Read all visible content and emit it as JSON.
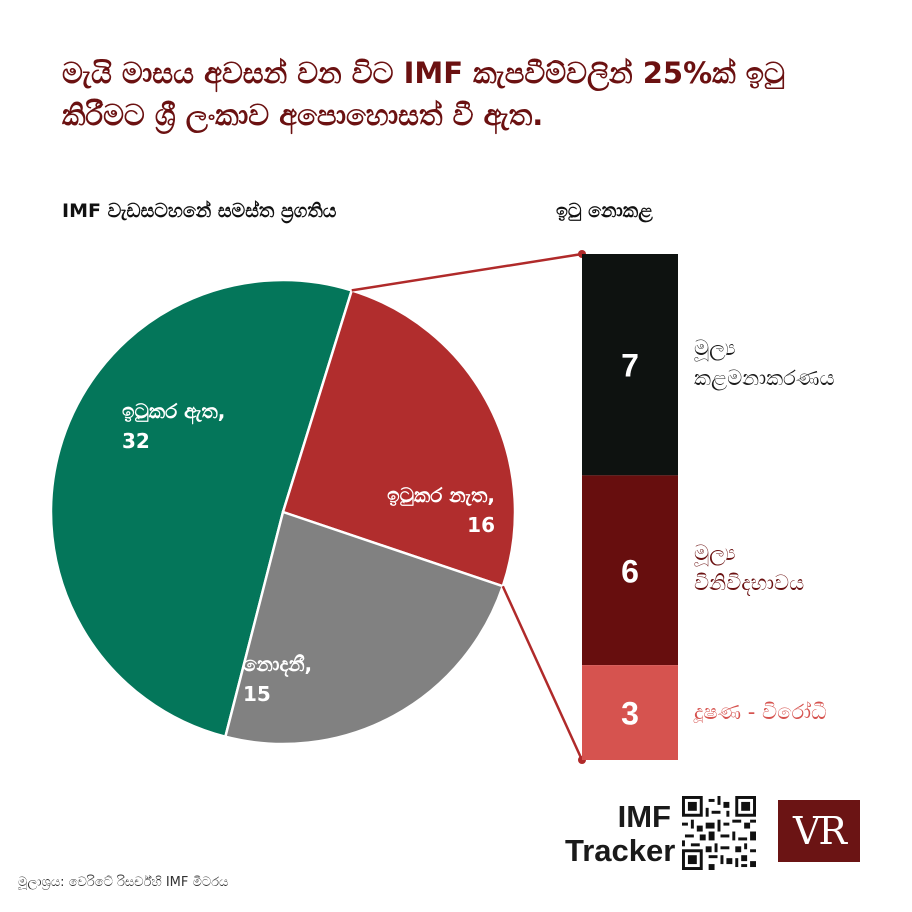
{
  "title": "මැයි මාසය අවසන් වන විට IMF කැපවීම්වලින් 25%ක් ඉටු කිරීමට ශ්‍රී ලංකාව අපොහොසත් වී ඇත.",
  "left_heading": "IMF වැඩසටහනේ සමස්ත ප්‍රගතිය",
  "right_heading": "ඉටු නොකළ",
  "source": "මූලාශ්‍රය: වෙරිටේ රිසර්ච්හි IMF මීටරය",
  "brand": {
    "line1": "IMF",
    "line2": "Tracker",
    "logo_text": "VR"
  },
  "colors": {
    "green": "#04765a",
    "red": "#b12d2d",
    "gray": "#818181",
    "bar_black": "#0e1210",
    "bar_maroon": "#670e0e",
    "bar_pink": "#d6534f",
    "connector": "#b02a2a",
    "title": "#6b1111"
  },
  "chart_data": [
    {
      "type": "pie",
      "slices": [
        {
          "label": "ඉටුකර ඇත,",
          "value": 32,
          "color": "#04765a"
        },
        {
          "label": "ඉටුකර නැත,",
          "value": 16,
          "color": "#b12d2d"
        },
        {
          "label": "නොදනී,",
          "value": 15,
          "color": "#818181"
        }
      ]
    },
    {
      "type": "bar",
      "stacked": true,
      "categories": [
        {
          "label_line1": "මූල්‍ය",
          "label_line2": "කළමනාකරණය",
          "value": 7,
          "color": "#0e1210",
          "text_color": "#1a1a1a"
        },
        {
          "label_line1": "මූල්‍ය",
          "label_line2": "විනිවිදභාවය",
          "value": 6,
          "color": "#670e0e",
          "text_color": "#6b1111"
        },
        {
          "label_line1": "දූෂණ - විරෝධී",
          "label_line2": "",
          "value": 3,
          "color": "#d6534f",
          "text_color": "#d6534f"
        }
      ]
    }
  ]
}
